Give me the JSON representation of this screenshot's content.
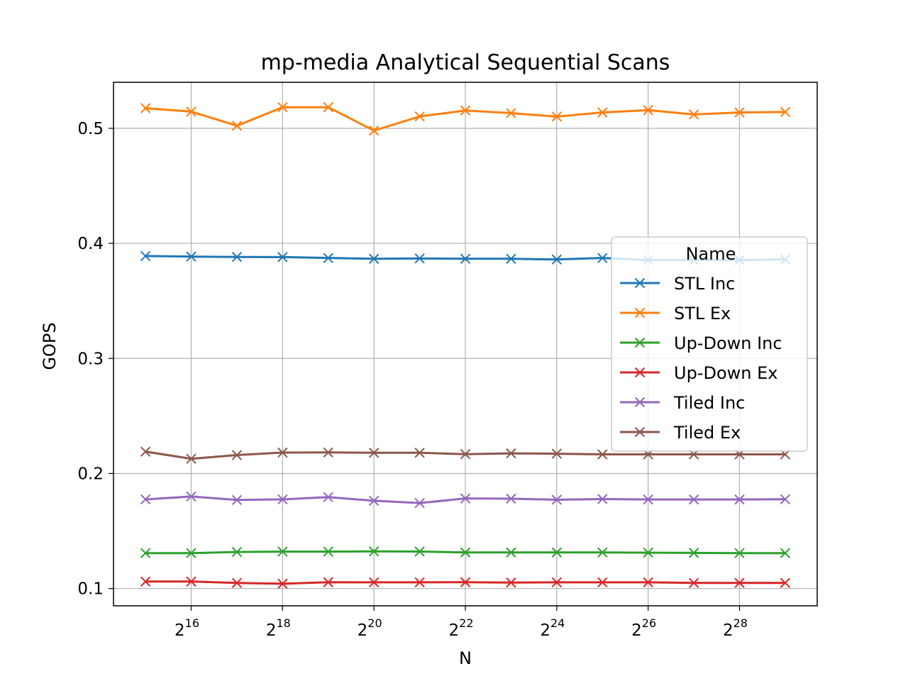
{
  "chart_data": {
    "type": "line",
    "title": "mp-media Analytical Sequential Scans",
    "xlabel": "N",
    "ylabel": "GOPS",
    "x_scale": "log2",
    "x_exponents": [
      15,
      16,
      17,
      18,
      19,
      20,
      21,
      22,
      23,
      24,
      25,
      26,
      27,
      28,
      29
    ],
    "x_tick_base": "2",
    "x_tick_exponents": [
      "16",
      "18",
      "20",
      "22",
      "24",
      "26",
      "28"
    ],
    "y_ticks": [
      "0.1",
      "0.2",
      "0.3",
      "0.4",
      "0.5"
    ],
    "ylim": [
      0.085,
      0.54
    ],
    "grid": true,
    "marker": "x",
    "legend": {
      "title": "Name",
      "placement": "center-right"
    },
    "series": [
      {
        "name": "STL Inc",
        "color": "#1f77b4",
        "values": [
          0.389,
          0.3885,
          0.3882,
          0.3881,
          0.3873,
          0.3866,
          0.3869,
          0.3866,
          0.3866,
          0.386,
          0.3873,
          0.3855,
          0.3855,
          0.3855,
          0.386
        ]
      },
      {
        "name": "STL Ex",
        "color": "#ff7f0e",
        "values": [
          0.5175,
          0.5145,
          0.5022,
          0.5183,
          0.5183,
          0.498,
          0.5103,
          0.5155,
          0.5132,
          0.5102,
          0.5138,
          0.5158,
          0.512,
          0.5138,
          0.5142
        ]
      },
      {
        "name": "Up-Down Inc",
        "color": "#2ca02c",
        "values": [
          0.1308,
          0.1308,
          0.1318,
          0.1321,
          0.1321,
          0.1323,
          0.1322,
          0.1314,
          0.1314,
          0.1314,
          0.1314,
          0.1312,
          0.131,
          0.1308,
          0.1308
        ]
      },
      {
        "name": "Up-Down Ex",
        "color": "#d62728",
        "values": [
          0.1061,
          0.1061,
          0.1049,
          0.1042,
          0.1055,
          0.1054,
          0.1054,
          0.1055,
          0.1052,
          0.1054,
          0.1054,
          0.1054,
          0.1049,
          0.1049,
          0.1049
        ]
      },
      {
        "name": "Tiled Inc",
        "color": "#9467bd",
        "values": [
          0.1775,
          0.18,
          0.177,
          0.1775,
          0.1795,
          0.1763,
          0.1743,
          0.1783,
          0.1781,
          0.1772,
          0.1778,
          0.1774,
          0.1774,
          0.1774,
          0.1776
        ]
      },
      {
        "name": "Tiled Ex",
        "color": "#8c564b",
        "values": [
          0.219,
          0.2128,
          0.216,
          0.2182,
          0.2183,
          0.218,
          0.218,
          0.2168,
          0.2175,
          0.2172,
          0.2166,
          0.2166,
          0.2166,
          0.2166,
          0.2166
        ]
      }
    ]
  }
}
